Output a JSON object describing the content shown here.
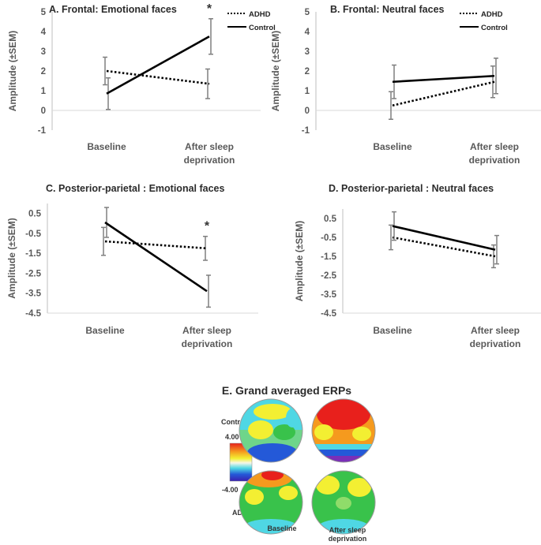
{
  "figure": {
    "ylabel": "Amplitude (±SEM)",
    "series_names": [
      "ADHD",
      "Control"
    ],
    "x_tick_labels": [
      [
        "Baseline"
      ],
      [
        "After sleep",
        "deprivation"
      ]
    ]
  },
  "chart_data": [
    {
      "type": "line",
      "title": "A. Frontal: Emotional faces",
      "xlabel": "",
      "ylabel": "Amplitude (±SEM)",
      "categories": [
        "Baseline",
        "After sleep deprivation"
      ],
      "ylim": [
        -1,
        5
      ],
      "yticks": [
        -1,
        0,
        1,
        2,
        3,
        4,
        5
      ],
      "ytick_labels": [
        "-1",
        "0",
        "1",
        "2",
        "3",
        "4",
        "5"
      ],
      "legend": "top-right",
      "significance": [
        "",
        "*"
      ],
      "series": [
        {
          "name": "ADHD",
          "style": "dotted",
          "values": [
            2.0,
            1.35
          ],
          "errors": [
            0.7,
            0.75
          ]
        },
        {
          "name": "Control",
          "style": "solid",
          "values": [
            0.85,
            3.75
          ],
          "errors": [
            0.8,
            0.9
          ]
        }
      ]
    },
    {
      "type": "line",
      "title": "B. Frontal: Neutral faces",
      "xlabel": "",
      "ylabel": "Amplitude (±SEM)",
      "categories": [
        "Baseline",
        "After sleep deprivation"
      ],
      "ylim": [
        -1,
        5
      ],
      "yticks": [
        -1,
        0,
        1,
        2,
        3,
        4,
        5
      ],
      "ytick_labels": [
        "-1",
        "0",
        "1",
        "2",
        "3",
        "4",
        "5"
      ],
      "legend": "top-right",
      "significance": [
        "",
        ""
      ],
      "series": [
        {
          "name": "ADHD",
          "style": "dotted",
          "values": [
            0.25,
            1.45
          ],
          "errors": [
            0.7,
            0.8
          ]
        },
        {
          "name": "Control",
          "style": "solid",
          "values": [
            1.45,
            1.75
          ],
          "errors": [
            0.85,
            0.9
          ]
        }
      ]
    },
    {
      "type": "line",
      "title": "C. Posterior-parietal : Emotional faces",
      "xlabel": "",
      "ylabel": "Amplitude (±SEM)",
      "categories": [
        "Baseline",
        "After sleep deprivation"
      ],
      "ylim": [
        -4.5,
        1.0
      ],
      "yticks": [
        -4.5,
        -3.5,
        -2.5,
        -1.5,
        -0.5,
        0.5
      ],
      "ytick_labels": [
        "-4.5",
        "-3.5",
        "-2.5",
        "-1.5",
        "-0.5",
        "0.5"
      ],
      "legend": "none",
      "significance": [
        "",
        "*"
      ],
      "series": [
        {
          "name": "ADHD",
          "style": "dotted",
          "values": [
            -0.9,
            -1.25
          ],
          "errors": [
            0.7,
            0.6
          ]
        },
        {
          "name": "Control",
          "style": "solid",
          "values": [
            0.05,
            -3.4
          ],
          "errors": [
            0.75,
            0.8
          ]
        }
      ]
    },
    {
      "type": "line",
      "title": "D. Posterior-parietal : Neutral faces",
      "xlabel": "",
      "ylabel": "Amplitude (±SEM)",
      "categories": [
        "Baseline",
        "After sleep deprivation"
      ],
      "ylim": [
        -4.5,
        1.0
      ],
      "yticks": [
        -4.5,
        -3.5,
        -2.5,
        -1.5,
        -0.5,
        0.5
      ],
      "ytick_labels": [
        "-4.5",
        "-3.5",
        "-2.5",
        "-1.5",
        "-0.5",
        "0.5"
      ],
      "legend": "none",
      "significance": [
        "",
        ""
      ],
      "series": [
        {
          "name": "ADHD",
          "style": "dotted",
          "values": [
            -0.5,
            -1.5
          ],
          "errors": [
            0.65,
            0.6
          ]
        },
        {
          "name": "Control",
          "style": "solid",
          "values": [
            0.1,
            -1.15
          ],
          "errors": [
            0.75,
            0.75
          ]
        }
      ]
    }
  ],
  "topomaps": {
    "title": "E. Grand averaged ERPs",
    "row_labels": [
      "Control",
      "ADHD"
    ],
    "column_labels": [
      [
        "Baseline"
      ],
      [
        "After sleep",
        "deprivation"
      ]
    ],
    "colorbar_max": "4.00",
    "colorbar_min": "-4.00",
    "colors": {
      "red": "#e8201c",
      "orange": "#f59a1e",
      "yellow": "#f3ef32",
      "green": "#39c24b",
      "cyan": "#4fd7e4",
      "blue": "#2459d8",
      "purple": "#7a2fb8"
    }
  }
}
